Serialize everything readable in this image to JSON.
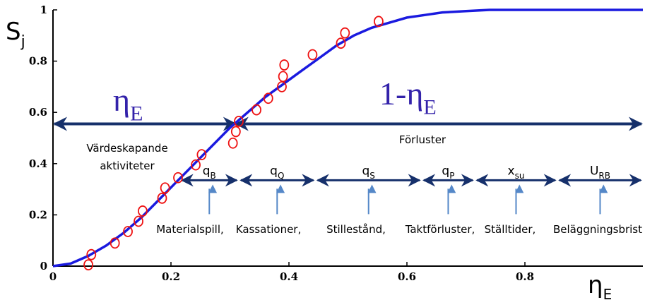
{
  "chart_data": {
    "type": "line",
    "xlabel": "η",
    "xlabel_sub": "E",
    "ylabel": "S",
    "ylabel_sub": "j",
    "xlim": [
      0,
      1
    ],
    "ylim": [
      0,
      1
    ],
    "xticks": [
      0,
      0.2,
      0.4,
      0.6,
      0.8
    ],
    "xtick_labels": [
      "0",
      "0.2",
      "0.4",
      "0.6",
      "0.8"
    ],
    "yticks": [
      0,
      0.2,
      0.4,
      0.6,
      0.8,
      1
    ],
    "ytick_labels": [
      "0",
      "0.2",
      "0.4",
      "0.6",
      "0.8",
      "1"
    ],
    "grid": false,
    "colors": {
      "curve": "#1a1adf",
      "points": "#ee1111",
      "arrows": "#16306b",
      "pointers": "#5588c8",
      "symbols": "#3322aa"
    },
    "series": [
      {
        "kind": "line",
        "x": [
          0,
          0.03,
          0.06,
          0.09,
          0.12,
          0.15,
          0.18,
          0.21,
          0.24,
          0.27,
          0.3,
          0.33,
          0.36,
          0.39,
          0.42,
          0.45,
          0.48,
          0.51,
          0.54,
          0.57,
          0.6,
          0.63,
          0.66,
          0.7,
          0.74,
          0.78,
          0.82,
          0.86,
          0.9,
          0.95,
          1.0
        ],
        "y": [
          0,
          0.01,
          0.04,
          0.08,
          0.13,
          0.19,
          0.26,
          0.33,
          0.4,
          0.47,
          0.54,
          0.6,
          0.66,
          0.71,
          0.76,
          0.81,
          0.86,
          0.9,
          0.93,
          0.95,
          0.97,
          0.98,
          0.99,
          0.995,
          1.0,
          1.0,
          1.0,
          1.0,
          1.0,
          1.0,
          1.0
        ]
      },
      {
        "kind": "scatter",
        "x": [
          0.06,
          0.065,
          0.105,
          0.127,
          0.145,
          0.152,
          0.185,
          0.19,
          0.212,
          0.242,
          0.252,
          0.305,
          0.31,
          0.315,
          0.345,
          0.365,
          0.388,
          0.39,
          0.392,
          0.44,
          0.488,
          0.495,
          0.552
        ],
        "y": [
          0.005,
          0.045,
          0.09,
          0.135,
          0.175,
          0.215,
          0.265,
          0.305,
          0.345,
          0.395,
          0.435,
          0.48,
          0.525,
          0.565,
          0.61,
          0.655,
          0.7,
          0.74,
          0.785,
          0.825,
          0.87,
          0.91,
          0.955
        ]
      }
    ],
    "annotations": {
      "eta_left": {
        "main": "η",
        "sub": "E"
      },
      "eta_right": {
        "main": "1-η",
        "sub": "E"
      },
      "arrow_y": 0.555,
      "left_label_lines": [
        "Värdeskapande",
        "aktiviteter"
      ],
      "right_label": "Förluster",
      "split_x": 0.31,
      "segment_y": 0.335,
      "segments": [
        {
          "x0": 0.215,
          "x1": 0.315,
          "sym": "q",
          "sub": "B",
          "label": "Materialspill,"
        },
        {
          "x0": 0.315,
          "x1": 0.445,
          "sym": "q",
          "sub": "Q",
          "label": "Kassationer,"
        },
        {
          "x0": 0.445,
          "x1": 0.625,
          "sym": "q",
          "sub": "S",
          "label": "Stillestånd,"
        },
        {
          "x0": 0.625,
          "x1": 0.715,
          "sym": "q",
          "sub": "P",
          "label": "Taktförluster,"
        },
        {
          "x0": 0.715,
          "x1": 0.855,
          "sym": "x",
          "sub": "su",
          "label": "Ställtider,"
        },
        {
          "x0": 0.855,
          "x1": 1.0,
          "sym": "U",
          "sub": "RB",
          "label": "Beläggningsbrist"
        }
      ]
    }
  }
}
